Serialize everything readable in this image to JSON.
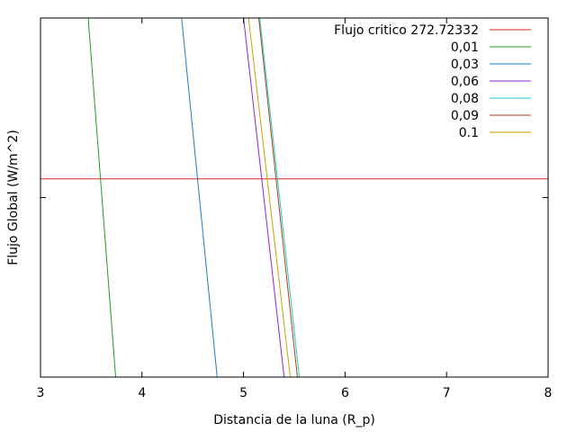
{
  "chart_data": {
    "type": "line",
    "title": "",
    "xlabel": "Distancia de la luna (R_p)",
    "ylabel": "Flujo Global (W/m^2)",
    "xlim": [
      3,
      8
    ],
    "xticks": [
      "3",
      "4",
      "5",
      "6",
      "7",
      "8"
    ],
    "ylim": [
      0,
      1
    ],
    "yticks_unlabeled": [
      0.5
    ],
    "grid": false,
    "legend_position": "top-right",
    "series": [
      {
        "name": "Flujo critico 272.72332",
        "color": "#d62a20",
        "x": [
          3,
          8
        ],
        "y": [
          0.552,
          0.552
        ]
      },
      {
        "name": "0,01",
        "color": "#1fa01f",
        "x": [
          3.47,
          3.74
        ],
        "y": [
          1.0,
          0.0
        ]
      },
      {
        "name": "0,03",
        "color": "#1a7fc0",
        "x": [
          4.39,
          4.74
        ],
        "y": [
          1.0,
          0.0
        ]
      },
      {
        "name": "0,06",
        "color": "#9a20c8",
        "x": [
          5.0,
          5.4
        ],
        "y": [
          1.0,
          0.0
        ]
      },
      {
        "name": "0,08",
        "color": "#20c8c8",
        "x": [
          5.16,
          5.55
        ],
        "y": [
          1.0,
          0.0
        ]
      },
      {
        "name": "0,09",
        "color": "#b04010",
        "x": [
          5.15,
          5.53
        ],
        "y": [
          1.0,
          0.0
        ]
      },
      {
        "name": "0.1",
        "color": "#d0a000",
        "x": [
          5.05,
          5.46
        ],
        "y": [
          1.0,
          0.0
        ]
      }
    ]
  }
}
